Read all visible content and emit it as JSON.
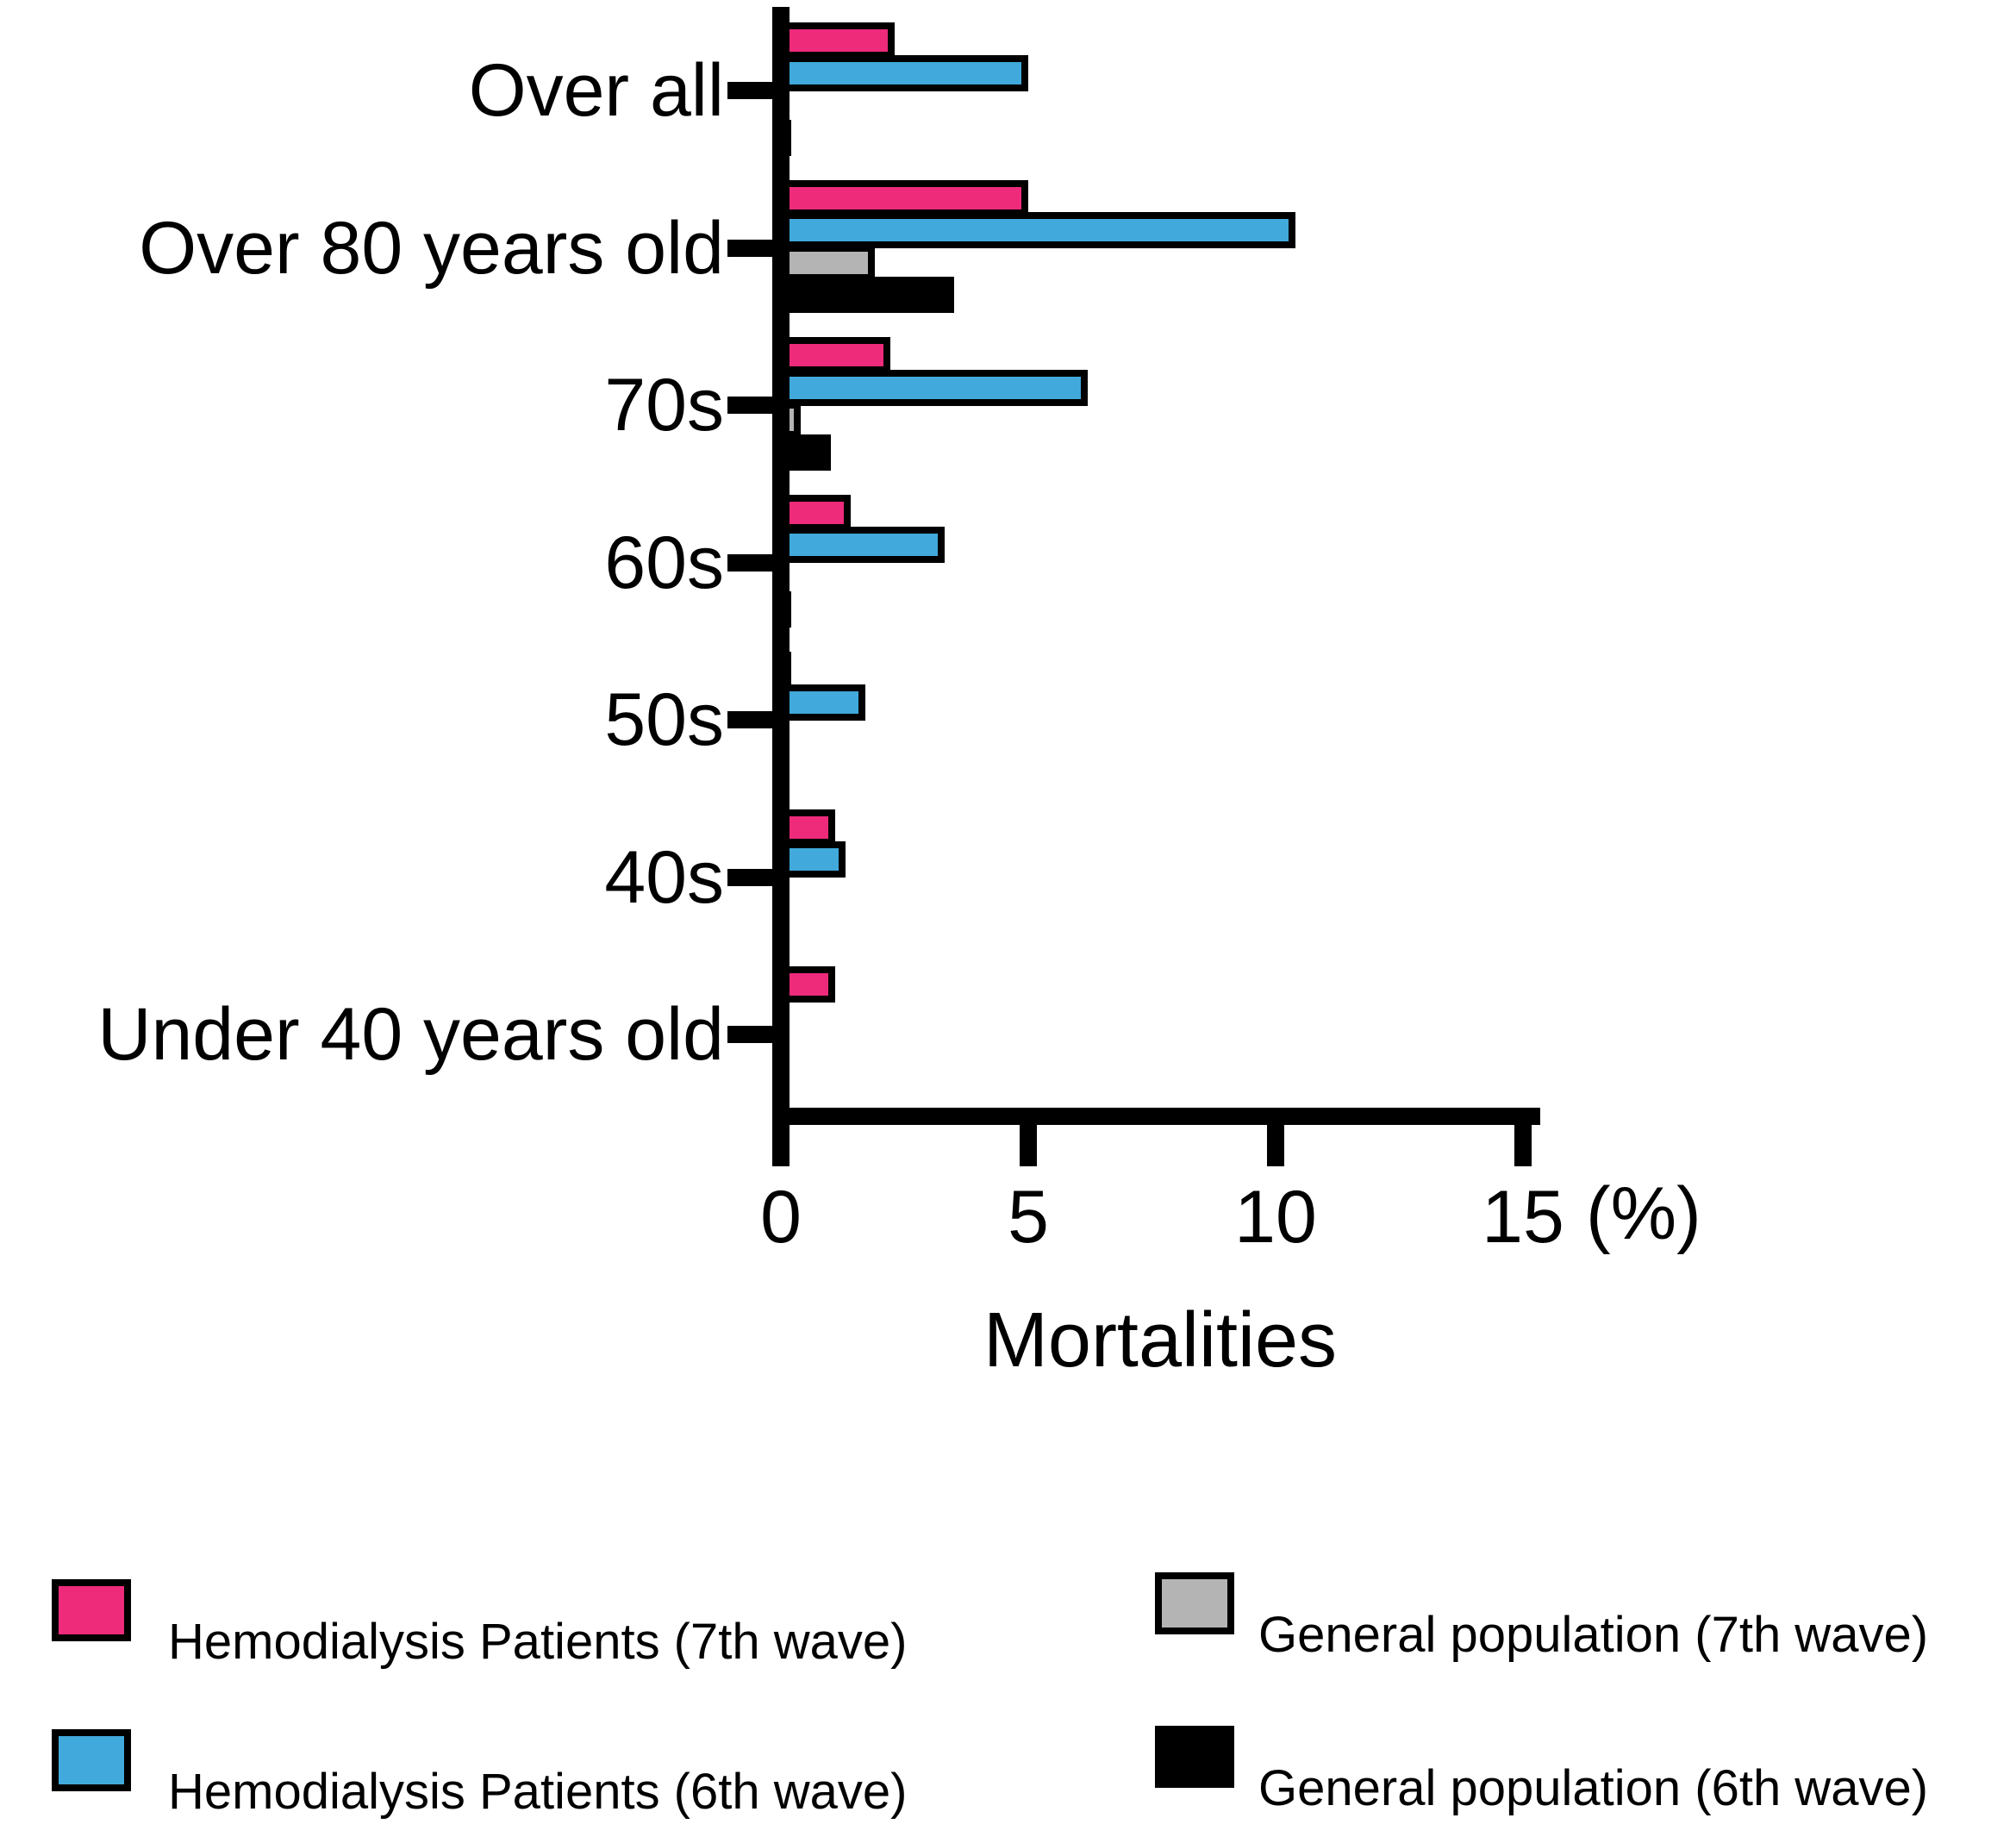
{
  "chart_data": {
    "type": "bar",
    "orientation": "horizontal",
    "title": "",
    "xlabel": "Mortalities",
    "x_unit": "(%)",
    "x_ticks": [
      0,
      5,
      10,
      15
    ],
    "xlim": [
      0,
      15.5
    ],
    "grid": false,
    "legend_position": "bottom",
    "bar_outline_color": "#000000",
    "categories": [
      "Over all",
      "Over 80 years old",
      "70s",
      "60s",
      "50s",
      "40s",
      "Under 40 years old"
    ],
    "series": [
      {
        "name": "Hemodialysis Patients (7th wave)",
        "color": "#EE2A7B",
        "values": [
          2.2,
          4.9,
          2.1,
          1.3,
          0.1,
          1.0,
          1.0
        ]
      },
      {
        "name": "Hemodialysis Patients (6th wave)",
        "color": "#41A9DC",
        "values": [
          4.9,
          10.3,
          6.1,
          3.2,
          1.6,
          1.2,
          0
        ]
      },
      {
        "name": "General population (7th wave)",
        "color": "#B4B4B4",
        "values": [
          0,
          1.8,
          0.3,
          0,
          0,
          0,
          0
        ]
      },
      {
        "name": "General population (6th wave)",
        "color": "#000000",
        "values": [
          0.1,
          3.4,
          0.9,
          0.1,
          0,
          0,
          0
        ]
      }
    ]
  }
}
